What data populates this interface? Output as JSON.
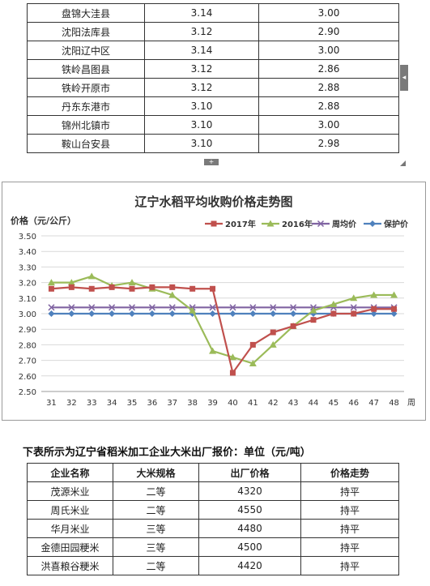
{
  "top_table": {
    "rows": [
      [
        "盘锦大洼县",
        "3.14",
        "3.00"
      ],
      [
        "沈阳法库县",
        "3.12",
        "2.90"
      ],
      [
        "沈阳辽中区",
        "3.14",
        "3.00"
      ],
      [
        "铁岭昌图县",
        "3.12",
        "2.86"
      ],
      [
        "铁岭开原市",
        "3.12",
        "2.88"
      ],
      [
        "丹东东港市",
        "3.10",
        "2.88"
      ],
      [
        "锦州北镇市",
        "3.10",
        "3.00"
      ],
      [
        "鞍山台安县",
        "3.10",
        "2.98"
      ]
    ]
  },
  "ui": {
    "side_handle": "◂",
    "bottom_handle": "+"
  },
  "chart_data": {
    "type": "line",
    "title": "辽宁水稻平均收购价格走势图",
    "ylabel": "价格（元/公斤）",
    "xlabel": "周",
    "ylim": [
      2.5,
      3.5
    ],
    "yticks": [
      "2.50",
      "2.60",
      "2.70",
      "2.80",
      "2.90",
      "3.00",
      "3.10",
      "3.20",
      "3.30",
      "3.40",
      "3.50"
    ],
    "x": [
      "31",
      "32",
      "33",
      "34",
      "35",
      "36",
      "37",
      "38",
      "39",
      "40",
      "41",
      "42",
      "43",
      "44",
      "45",
      "46",
      "47",
      "48"
    ],
    "legend_position": "top-right",
    "series": [
      {
        "name": "2017年",
        "color": "#c0504d",
        "marker": "square",
        "values": [
          3.16,
          3.17,
          3.16,
          3.17,
          3.16,
          3.17,
          3.17,
          3.16,
          3.16,
          2.62,
          2.8,
          2.88,
          2.92,
          2.96,
          3.0,
          3.0,
          3.03,
          3.03
        ]
      },
      {
        "name": "2016年",
        "color": "#9bbb59",
        "marker": "triangle",
        "values": [
          3.2,
          3.2,
          3.24,
          3.18,
          3.2,
          3.16,
          3.12,
          3.02,
          2.76,
          2.72,
          2.68,
          2.8,
          2.92,
          3.02,
          3.06,
          3.1,
          3.12,
          3.12
        ]
      },
      {
        "name": "周均价",
        "color": "#8064a2",
        "marker": "x",
        "values": [
          3.04,
          3.04,
          3.04,
          3.04,
          3.04,
          3.04,
          3.04,
          3.04,
          3.04,
          3.04,
          3.04,
          3.04,
          3.04,
          3.04,
          3.04,
          3.04,
          3.04,
          3.04
        ]
      },
      {
        "name": "保护价",
        "color": "#4f81bd",
        "marker": "diamond",
        "values": [
          3.0,
          3.0,
          3.0,
          3.0,
          3.0,
          3.0,
          3.0,
          3.0,
          3.0,
          3.0,
          3.0,
          3.0,
          3.0,
          3.0,
          3.0,
          3.0,
          3.0,
          3.0
        ]
      }
    ]
  },
  "note": "下表所示为辽宁省稻米加工企业大米出厂报价：单位（元/吨）",
  "bottom_table": {
    "headers": [
      "企业名称",
      "大米规格",
      "出厂价格",
      "价格走势"
    ],
    "rows": [
      [
        "茂源米业",
        "二等",
        "4320",
        "持平"
      ],
      [
        "周氏米业",
        "二等",
        "4550",
        "持平"
      ],
      [
        "华月米业",
        "三等",
        "4480",
        "持平"
      ],
      [
        "金德田园粳米",
        "三等",
        "4500",
        "持平"
      ],
      [
        "洪喜粮谷粳米",
        "二等",
        "4420",
        "持平"
      ]
    ]
  }
}
